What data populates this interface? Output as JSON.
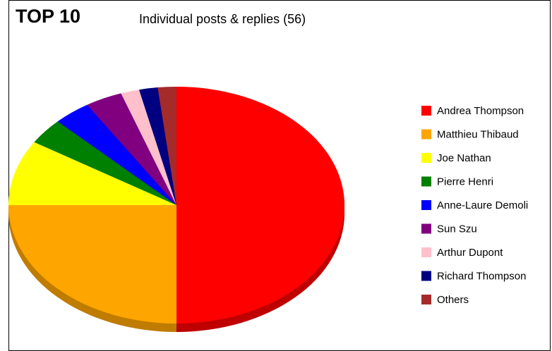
{
  "header": "TOP 10",
  "chart_data": {
    "type": "pie",
    "title": "Individual posts & replies (56)",
    "categories": [
      "Andrea Thompson",
      "Matthieu Thibaud",
      "Joe Nathan",
      "Pierre Henri",
      "Anne-Laure Demoli",
      "Sun Szu",
      "Arthur Dupont",
      "Richard Thompson",
      "Others"
    ],
    "values": [
      28,
      14,
      5,
      2,
      2,
      2,
      1,
      1,
      1
    ],
    "colors": [
      "#ff0000",
      "#ffa500",
      "#ffff00",
      "#008000",
      "#0000ff",
      "#800080",
      "#ffc0cb",
      "#000080",
      "#a52a2a"
    ],
    "legend": "right"
  }
}
